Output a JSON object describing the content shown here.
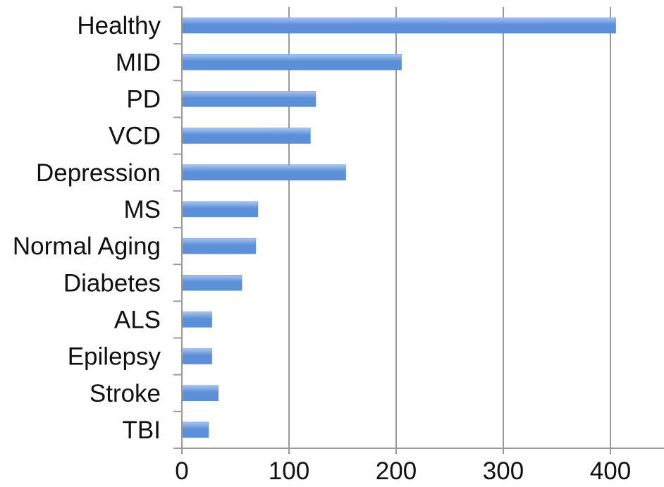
{
  "chart_data": {
    "type": "bar",
    "orientation": "horizontal",
    "title": "",
    "xlabel": "",
    "ylabel": "",
    "categories": [
      "Healthy",
      "MID",
      "PD",
      "VCD",
      "Depression",
      "MS",
      "Normal Aging",
      "Diabetes",
      "ALS",
      "Epilepsy",
      "Stroke",
      "TBI"
    ],
    "values": [
      405,
      205,
      125,
      120,
      153,
      71,
      69,
      56,
      28,
      28,
      34,
      25
    ],
    "xlim": [
      0,
      450
    ],
    "xticks": [
      0,
      100,
      200,
      300,
      400
    ],
    "xtick_labels": [
      "0",
      "100",
      "200",
      "300",
      "400"
    ],
    "grid": "vertical",
    "legend": "none",
    "bar_color": "#5b8fd8",
    "bar_color_light": "#a9c5ef",
    "grid_color": "#9a9a9a"
  }
}
